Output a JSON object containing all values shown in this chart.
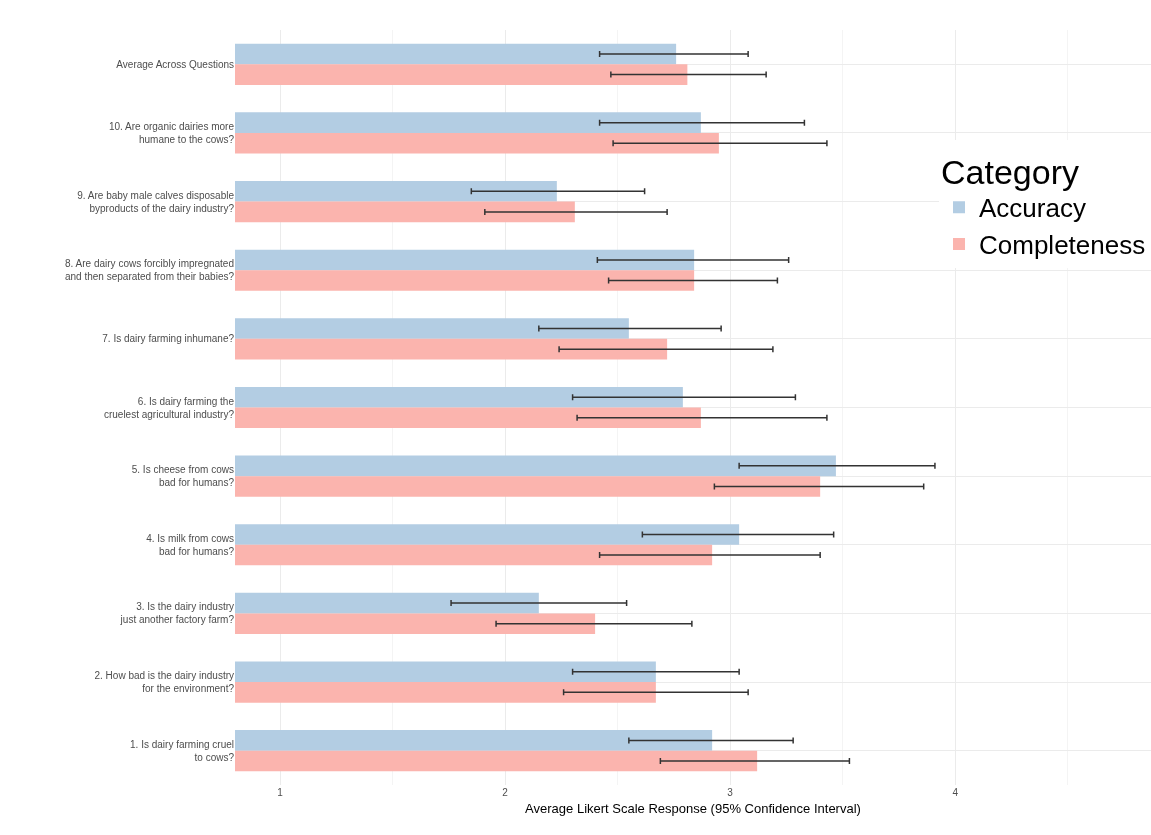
{
  "chart_data": {
    "type": "bar",
    "orientation": "horizontal",
    "xlabel": "Average Likert Scale Response (95% Confidence Interval)",
    "legend_title": "Category",
    "categories": [
      "Average Across Questions",
      "10. Are organic dairies more\nhumane to the cows?",
      "9. Are baby male calves disposable\nbyproducts of the dairy industry?",
      "8. Are dairy cows forcibly impregnated\nand then separated from their babies?",
      "7. Is dairy farming inhumane?",
      "6. Is dairy farming the\ncruelest agricultural industry?",
      "5. Is cheese from cows\nbad for humans?",
      "4. Is milk from cows\nbad for humans?",
      "3. Is the dairy industry\njust another factory farm?",
      "2. How bad is the dairy industry\nfor the environment?",
      "1. Is dairy farming cruel\nto cows?"
    ],
    "series": [
      {
        "name": "Accuracy",
        "color": "#b3cde3",
        "values": [
          2.76,
          2.87,
          2.23,
          2.84,
          2.55,
          2.79,
          3.47,
          3.04,
          2.15,
          2.67,
          2.92
        ],
        "errors": [
          [
            2.42,
            3.08
          ],
          [
            2.42,
            3.33
          ],
          [
            1.85,
            2.62
          ],
          [
            2.41,
            3.26
          ],
          [
            2.15,
            2.96
          ],
          [
            2.3,
            3.29
          ],
          [
            3.04,
            3.91
          ],
          [
            2.61,
            3.46
          ],
          [
            1.76,
            2.54
          ],
          [
            2.3,
            3.04
          ],
          [
            2.55,
            3.28
          ]
        ]
      },
      {
        "name": "Completeness",
        "color": "#fbb4ae",
        "values": [
          2.81,
          2.95,
          2.31,
          2.84,
          2.72,
          2.87,
          3.4,
          2.92,
          2.4,
          2.67,
          3.12
        ],
        "errors": [
          [
            2.47,
            3.16
          ],
          [
            2.48,
            3.43
          ],
          [
            1.91,
            2.72
          ],
          [
            2.46,
            3.21
          ],
          [
            2.24,
            3.19
          ],
          [
            2.32,
            3.43
          ],
          [
            2.93,
            3.86
          ],
          [
            2.42,
            3.4
          ],
          [
            1.96,
            2.83
          ],
          [
            2.26,
            3.08
          ],
          [
            2.69,
            3.53
          ]
        ]
      }
    ],
    "xlim": [
      0.8,
      4.87
    ],
    "xticks": [
      1,
      2,
      3,
      4
    ],
    "grid": true,
    "legend": "right"
  }
}
